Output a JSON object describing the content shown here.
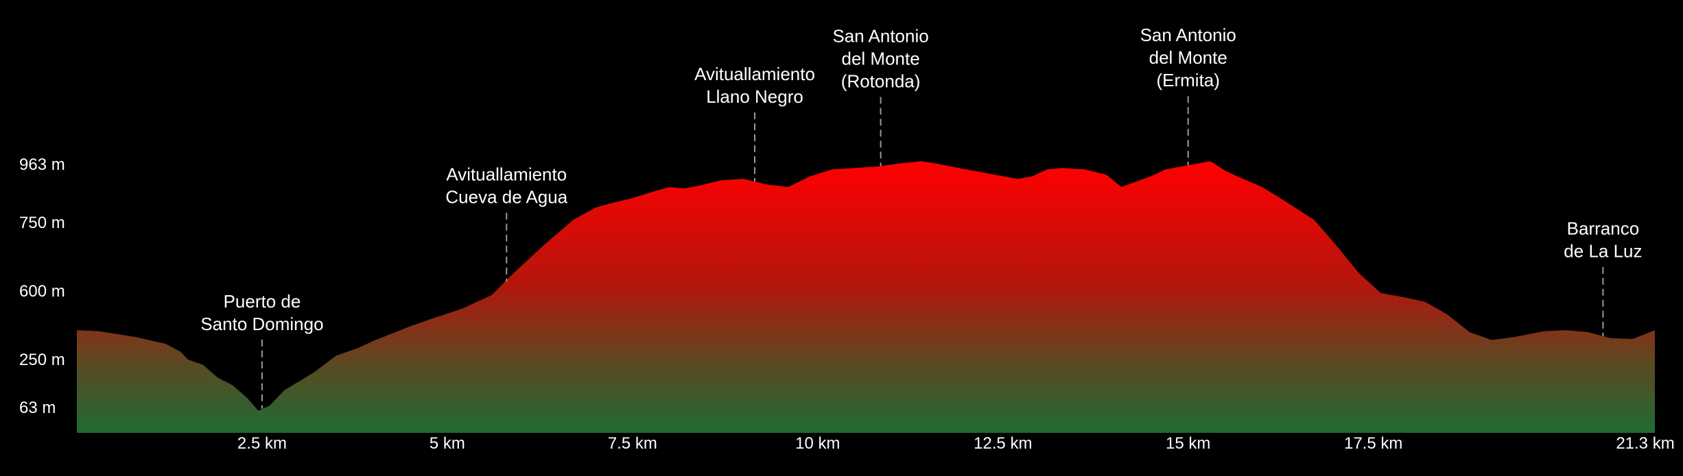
{
  "chart_data": {
    "type": "area",
    "title": "",
    "xlabel": "",
    "ylabel": "",
    "colors": {
      "background": "#000000",
      "top_fill": "#ff0000",
      "bottom_fill": "#1f6b33",
      "text": "#ffffff",
      "marker_line": "#9a9a9a"
    },
    "x_unit": "km",
    "y_unit": "m",
    "xlim": [
      0,
      21.3
    ],
    "ylim": [
      0,
      1100
    ],
    "x_ticks": [
      {
        "value": 2.5,
        "label": "2.5 km"
      },
      {
        "value": 5,
        "label": "5 km"
      },
      {
        "value": 7.5,
        "label": "7.5 km"
      },
      {
        "value": 10,
        "label": "10 km"
      },
      {
        "value": 12.5,
        "label": "12.5 km"
      },
      {
        "value": 15,
        "label": "15 km"
      },
      {
        "value": 17.5,
        "label": "17.5 km"
      },
      {
        "value": 21.3,
        "label": "21.3 km"
      }
    ],
    "y_ticks": [
      {
        "value": 63,
        "label": "63 m"
      },
      {
        "value": 250,
        "label": "250 m"
      },
      {
        "value": 600,
        "label": "600 m"
      },
      {
        "value": 750,
        "label": "750 m"
      },
      {
        "value": 963,
        "label": "963 m"
      }
    ],
    "profile": {
      "x": [
        0,
        0.3,
        0.8,
        1.2,
        1.4,
        1.5,
        1.7,
        1.9,
        2.1,
        2.3,
        2.45,
        2.6,
        2.8,
        3.2,
        3.5,
        3.8,
        4.0,
        4.2,
        4.5,
        4.8,
        5.2,
        5.6,
        5.9,
        6.3,
        6.7,
        7.0,
        7.2,
        7.5,
        7.8,
        8.0,
        8.2,
        8.4,
        8.7,
        9.0,
        9.3,
        9.6,
        9.9,
        10.2,
        10.5,
        10.8,
        11.1,
        11.4,
        11.6,
        11.8,
        12.1,
        12.4,
        12.7,
        12.9,
        13.1,
        13.3,
        13.6,
        13.9,
        14.1,
        14.3,
        14.5,
        14.7,
        15.0,
        15.3,
        15.5,
        15.7,
        16.0,
        16.3,
        16.7,
        17.0,
        17.3,
        17.6,
        17.9,
        18.2,
        18.5,
        18.8,
        19.1,
        19.4,
        19.6,
        19.8,
        20.1,
        20.4,
        20.7,
        21.0,
        21.3
      ],
      "y": [
        400,
        395,
        365,
        330,
        290,
        250,
        230,
        180,
        150,
        100,
        55,
        70,
        130,
        200,
        270,
        310,
        345,
        375,
        420,
        460,
        510,
        580,
        640,
        700,
        760,
        805,
        820,
        840,
        865,
        880,
        875,
        885,
        905,
        910,
        890,
        880,
        920,
        945,
        950,
        955,
        965,
        970,
        965,
        955,
        940,
        925,
        910,
        920,
        945,
        950,
        945,
        925,
        880,
        900,
        920,
        945,
        960,
        970,
        940,
        915,
        880,
        830,
        760,
        700,
        640,
        590,
        570,
        545,
        480,
        390,
        350,
        365,
        380,
        395,
        400,
        390,
        360,
        355,
        400
      ]
    },
    "annotations": [
      {
        "x": 2.5,
        "lines": [
          "Puerto de",
          "Santo Domingo"
        ]
      },
      {
        "x": 5.8,
        "lines": [
          "Avituallamiento",
          "Cueva de Agua"
        ]
      },
      {
        "x": 9.15,
        "lines": [
          "Avituallamiento",
          "Llano Negro"
        ]
      },
      {
        "x": 10.85,
        "lines": [
          "San Antonio",
          "del Monte",
          "(Rotonda)"
        ]
      },
      {
        "x": 15.0,
        "lines": [
          "San Antonio",
          "del Monte",
          "(Ermita)"
        ]
      },
      {
        "x": 20.6,
        "lines": [
          "Barranco",
          "de La Luz"
        ]
      }
    ]
  }
}
